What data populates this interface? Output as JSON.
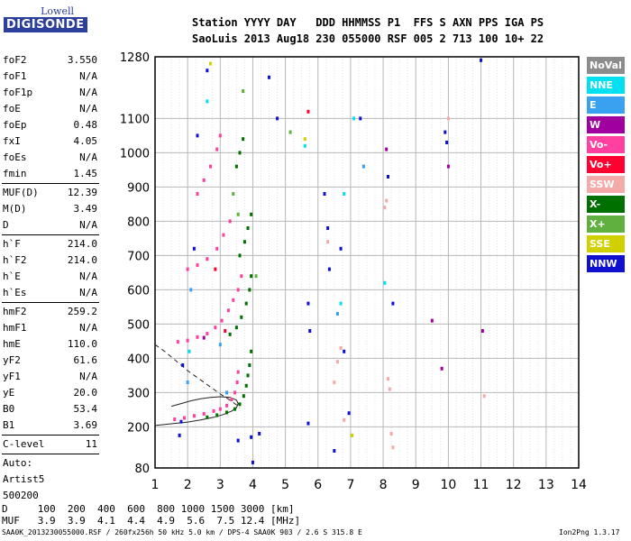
{
  "logo": {
    "top": "Lowell",
    "bottom": "DIGISONDE"
  },
  "header": {
    "line1": "Station YYYY DAY   DDD HHMMSS P1  FFS S AXN PPS IGA PS",
    "line2": "SaoLuis 2013 Aug18 230 055000 RSF 005 2 713 100 10+ 22"
  },
  "params": [
    [
      {
        "k": "foF2",
        "v": "3.550"
      },
      {
        "k": "foF1",
        "v": "N/A"
      },
      {
        "k": "foF1p",
        "v": "N/A"
      },
      {
        "k": "foE",
        "v": "N/A"
      },
      {
        "k": "foEp",
        "v": "0.48"
      },
      {
        "k": "fxI",
        "v": "4.05"
      },
      {
        "k": "foEs",
        "v": "N/A"
      },
      {
        "k": "fmin",
        "v": "1.45"
      }
    ],
    [
      {
        "k": "MUF(D)",
        "v": "12.39"
      },
      {
        "k": "M(D)",
        "v": "3.49"
      },
      {
        "k": "D",
        "v": "N/A"
      }
    ],
    [
      {
        "k": "h`F",
        "v": "214.0"
      },
      {
        "k": "h`F2",
        "v": "214.0"
      },
      {
        "k": "h`E",
        "v": "N/A"
      },
      {
        "k": "h`Es",
        "v": "N/A"
      }
    ],
    [
      {
        "k": "hmF2",
        "v": "259.2"
      },
      {
        "k": "hmF1",
        "v": "N/A"
      },
      {
        "k": "hmE",
        "v": "110.0"
      },
      {
        "k": "yF2",
        "v": "61.6"
      },
      {
        "k": "yF1",
        "v": "N/A"
      },
      {
        "k": "yE",
        "v": "20.0"
      },
      {
        "k": "B0",
        "v": "53.4"
      },
      {
        "k": "B1",
        "v": "3.69"
      }
    ],
    [
      {
        "k": "C-level",
        "v": "11"
      }
    ],
    [
      {
        "k": "Auto:",
        "v": ""
      },
      {
        "k": "Artist5",
        "v": ""
      },
      {
        "k": "500200",
        "v": ""
      }
    ]
  ],
  "legend": [
    {
      "label": "NoVal",
      "color": "#8c8c8c"
    },
    {
      "label": "NNE",
      "color": "#00e0f0"
    },
    {
      "label": "E",
      "color": "#3aa0f0"
    },
    {
      "label": "W",
      "color": "#a000a0"
    },
    {
      "label": "Vo-",
      "color": "#ff40a0"
    },
    {
      "label": "Vo+",
      "color": "#ff0030"
    },
    {
      "label": "SSW",
      "color": "#f5aaaa"
    },
    {
      "label": "X-",
      "color": "#007000"
    },
    {
      "label": "X+",
      "color": "#60b040"
    },
    {
      "label": "SSE",
      "color": "#d0d000"
    },
    {
      "label": "NNW",
      "color": "#1010d0"
    }
  ],
  "muf_table": {
    "d_line": "D     100  200  400  600  800 1000 1500 3000 [km]",
    "muf_line": "MUF   3.9  3.9  4.1  4.4  4.9  5.6  7.5 12.4 [MHz]"
  },
  "footer": {
    "left": "SAA0K_2013230055000.RSF / 260fx256h 50 kHz 5.0 km / DPS-4 SAA0K 903 / 2.6 S 315.8 E",
    "right": "Ion2Png 1.3.17"
  },
  "chart_data": {
    "type": "scatter",
    "title": "",
    "xlabel": "",
    "ylabel": "",
    "xlim": [
      1,
      14
    ],
    "ylim": [
      80,
      1280
    ],
    "x_ticks": [
      1,
      2,
      3,
      4,
      5,
      6,
      7,
      8,
      9,
      10,
      11,
      12,
      13,
      14
    ],
    "y_ticks": [
      80,
      200,
      300,
      400,
      500,
      600,
      700,
      800,
      900,
      1000,
      1100,
      1280
    ],
    "grid": true,
    "traces": [
      {
        "name": "Vo-",
        "color": "#ff40a0",
        "points": [
          [
            1.6,
            222
          ],
          [
            1.9,
            226
          ],
          [
            2.2,
            232
          ],
          [
            2.5,
            238
          ],
          [
            2.8,
            246
          ],
          [
            3.0,
            252
          ],
          [
            3.2,
            262
          ],
          [
            3.35,
            280
          ],
          [
            3.45,
            300
          ],
          [
            3.52,
            330
          ],
          [
            3.55,
            360
          ],
          [
            1.7,
            448
          ],
          [
            2.0,
            452
          ],
          [
            2.3,
            462
          ],
          [
            2.6,
            472
          ],
          [
            2.85,
            490
          ],
          [
            3.05,
            510
          ],
          [
            3.25,
            540
          ],
          [
            3.4,
            570
          ],
          [
            3.55,
            600
          ],
          [
            3.65,
            640
          ],
          [
            2.0,
            660
          ],
          [
            2.3,
            672
          ],
          [
            2.6,
            690
          ],
          [
            2.9,
            720
          ],
          [
            3.1,
            760
          ],
          [
            3.3,
            800
          ],
          [
            2.3,
            880
          ],
          [
            2.5,
            920
          ],
          [
            2.7,
            960
          ],
          [
            2.9,
            1010
          ],
          [
            3.0,
            1050
          ]
        ]
      },
      {
        "name": "X-",
        "color": "#007000",
        "points": [
          [
            2.6,
            228
          ],
          [
            2.9,
            234
          ],
          [
            3.2,
            242
          ],
          [
            3.45,
            252
          ],
          [
            3.6,
            266
          ],
          [
            3.72,
            290
          ],
          [
            3.8,
            320
          ],
          [
            3.85,
            350
          ],
          [
            3.9,
            380
          ],
          [
            3.95,
            420
          ],
          [
            3.3,
            470
          ],
          [
            3.5,
            490
          ],
          [
            3.65,
            520
          ],
          [
            3.8,
            560
          ],
          [
            3.9,
            600
          ],
          [
            3.95,
            640
          ],
          [
            3.6,
            700
          ],
          [
            3.75,
            740
          ],
          [
            3.85,
            780
          ],
          [
            3.95,
            820
          ],
          [
            3.5,
            960
          ],
          [
            3.6,
            1000
          ],
          [
            3.7,
            1040
          ]
        ]
      },
      {
        "name": "NNW",
        "color": "#1010d0",
        "points": [
          [
            1.75,
            175
          ],
          [
            1.8,
            215
          ],
          [
            1.85,
            380
          ],
          [
            2.2,
            720
          ],
          [
            2.3,
            1050
          ],
          [
            2.6,
            1240
          ],
          [
            3.55,
            160
          ],
          [
            3.95,
            170
          ],
          [
            4.0,
            96
          ],
          [
            4.2,
            180
          ],
          [
            4.5,
            1220
          ],
          [
            4.75,
            1100
          ],
          [
            5.7,
            560
          ],
          [
            5.75,
            480
          ],
          [
            5.7,
            210
          ],
          [
            6.2,
            880
          ],
          [
            6.3,
            780
          ],
          [
            6.35,
            660
          ],
          [
            6.5,
            130
          ],
          [
            6.7,
            720
          ],
          [
            6.8,
            420
          ],
          [
            6.95,
            240
          ],
          [
            7.3,
            1100
          ],
          [
            8.15,
            930
          ],
          [
            8.3,
            560
          ],
          [
            9.9,
            1060
          ],
          [
            9.95,
            1030
          ],
          [
            11.0,
            1270
          ]
        ]
      },
      {
        "name": "SSW",
        "color": "#f5aaaa",
        "points": [
          [
            6.3,
            740
          ],
          [
            6.5,
            330
          ],
          [
            6.6,
            390
          ],
          [
            6.7,
            430
          ],
          [
            6.8,
            220
          ],
          [
            8.05,
            840
          ],
          [
            8.1,
            860
          ],
          [
            8.15,
            340
          ],
          [
            8.2,
            310
          ],
          [
            8.25,
            180
          ],
          [
            8.3,
            140
          ],
          [
            10.0,
            1100
          ],
          [
            11.1,
            290
          ]
        ]
      },
      {
        "name": "NNE",
        "color": "#00e0f0",
        "points": [
          [
            2.05,
            420
          ],
          [
            2.6,
            1150
          ],
          [
            5.6,
            1020
          ],
          [
            6.7,
            560
          ],
          [
            6.8,
            880
          ],
          [
            7.1,
            1100
          ],
          [
            8.05,
            620
          ]
        ]
      },
      {
        "name": "E",
        "color": "#3aa0f0",
        "points": [
          [
            2.0,
            330
          ],
          [
            2.1,
            600
          ],
          [
            3.0,
            440
          ],
          [
            3.2,
            300
          ],
          [
            6.6,
            530
          ],
          [
            7.4,
            960
          ]
        ]
      },
      {
        "name": "W",
        "color": "#a000a0",
        "points": [
          [
            2.5,
            460
          ],
          [
            9.5,
            510
          ],
          [
            9.8,
            370
          ],
          [
            11.05,
            480
          ],
          [
            10.0,
            960
          ],
          [
            8.1,
            1010
          ]
        ]
      },
      {
        "name": "X+",
        "color": "#60b040",
        "points": [
          [
            3.4,
            880
          ],
          [
            3.55,
            820
          ],
          [
            3.7,
            1180
          ],
          [
            4.1,
            640
          ],
          [
            5.15,
            1060
          ]
        ]
      },
      {
        "name": "SSE",
        "color": "#d0d000",
        "points": [
          [
            2.7,
            1260
          ],
          [
            5.6,
            1040
          ],
          [
            7.05,
            175
          ]
        ]
      },
      {
        "name": "Vo+",
        "color": "#ff0030",
        "points": [
          [
            2.85,
            660
          ],
          [
            3.15,
            480
          ],
          [
            5.7,
            1120
          ]
        ]
      }
    ],
    "fit_curves": [
      {
        "name": "virtual-height-fit",
        "style": "solid",
        "points": [
          [
            1.0,
            204
          ],
          [
            1.5,
            209
          ],
          [
            2.0,
            214
          ],
          [
            2.4,
            220
          ],
          [
            2.8,
            228
          ],
          [
            3.1,
            236
          ],
          [
            3.35,
            246
          ],
          [
            3.5,
            256
          ],
          [
            3.55,
            268
          ],
          [
            3.5,
            278
          ],
          [
            3.3,
            286
          ],
          [
            3.0,
            288
          ],
          [
            2.7,
            286
          ],
          [
            2.4,
            282
          ],
          [
            2.1,
            276
          ],
          [
            1.8,
            268
          ],
          [
            1.5,
            260
          ]
        ]
      },
      {
        "name": "profile-fit",
        "style": "dashed",
        "points": [
          [
            1.0,
            440
          ],
          [
            1.3,
            420
          ],
          [
            1.6,
            396
          ],
          [
            2.0,
            364
          ],
          [
            2.5,
            330
          ],
          [
            3.0,
            296
          ],
          [
            3.3,
            278
          ],
          [
            3.5,
            264
          ],
          [
            3.6,
            255
          ]
        ]
      }
    ]
  }
}
